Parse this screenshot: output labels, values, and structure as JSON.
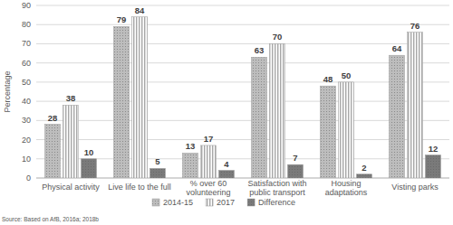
{
  "chart_data": {
    "type": "bar",
    "y_label": "Percentage",
    "annotations": [
      "Source: Based on AfB, 2016a; 2018b"
    ],
    "categories": [
      "Physical activity",
      "Live life to the full",
      "% over 60 volunteering",
      "Satisfaction with public transport",
      "Housing adaptations",
      "Visting parks"
    ],
    "series": [
      {
        "name": "2014-15",
        "color": "#bdbdbd",
        "values": [
          28,
          79,
          13,
          63,
          48,
          64
        ]
      },
      {
        "name": "2017",
        "color": "#d9d9d9",
        "values": [
          38,
          84,
          17,
          70,
          50,
          76
        ]
      },
      {
        "name": "Difference",
        "color": "#7a7a7a",
        "values": [
          10,
          5,
          4,
          7,
          2,
          12
        ]
      }
    ],
    "ylim": [
      0,
      90
    ],
    "yticks": [
      0,
      10,
      20,
      30,
      40,
      50,
      60,
      70,
      80,
      90
    ],
    "grid": true,
    "legend": "bottom",
    "data_labels": true
  }
}
